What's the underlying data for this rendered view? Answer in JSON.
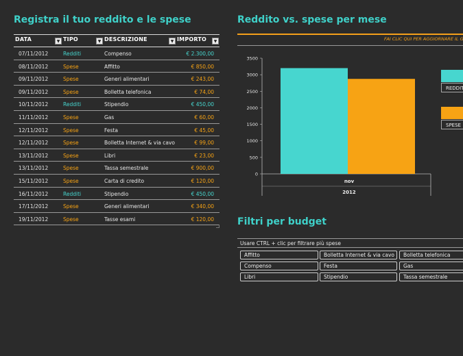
{
  "left_title": "Registra il tuo reddito e le spese",
  "right_title": "Reddito vs. spese per mese",
  "refresh_link": "FAI CLIC QUI PER AGGIORNARE IL GRAFICO",
  "filters_title": "Filtri per budget",
  "slicer_label": "Usare CTRL + clic per filtrare più spese",
  "colors": {
    "income": "#47d6cf",
    "expense": "#f7a314",
    "title": "#3fd1c9"
  },
  "table": {
    "headers": {
      "date": "DATA",
      "type": "TIPO",
      "desc": "DESCRIZIONE",
      "amount": "IMPORTO"
    },
    "rows": [
      {
        "date": "07/11/2012",
        "type": "Redditi",
        "kind": "income",
        "desc": "Compenso",
        "amount": "€ 2.300,00"
      },
      {
        "date": "08/11/2012",
        "type": "Spese",
        "kind": "expense",
        "desc": "Affitto",
        "amount": "€ 850,00"
      },
      {
        "date": "09/11/2012",
        "type": "Spese",
        "kind": "expense",
        "desc": "Generi alimentari",
        "amount": "€ 243,00"
      },
      {
        "date": "09/11/2012",
        "type": "Spese",
        "kind": "expense",
        "desc": "Bolletta telefonica",
        "amount": "€ 74,00"
      },
      {
        "date": "10/11/2012",
        "type": "Redditi",
        "kind": "income",
        "desc": "Stipendio",
        "amount": "€ 450,00"
      },
      {
        "date": "11/11/2012",
        "type": "Spese",
        "kind": "expense",
        "desc": "Gas",
        "amount": "€ 60,00"
      },
      {
        "date": "12/11/2012",
        "type": "Spese",
        "kind": "expense",
        "desc": "Festa",
        "amount": "€ 45,00"
      },
      {
        "date": "12/11/2012",
        "type": "Spese",
        "kind": "expense",
        "desc": "Bolletta Internet & via cavo",
        "amount": "€ 99,00"
      },
      {
        "date": "13/11/2012",
        "type": "Spese",
        "kind": "expense",
        "desc": "Libri",
        "amount": "€ 23,00"
      },
      {
        "date": "13/11/2012",
        "type": "Spese",
        "kind": "expense",
        "desc": "Tassa semestrale",
        "amount": "€ 900,00"
      },
      {
        "date": "15/11/2012",
        "type": "Spese",
        "kind": "expense",
        "desc": "Carta di credito",
        "amount": "€ 120,00"
      },
      {
        "date": "16/11/2012",
        "type": "Redditi",
        "kind": "income",
        "desc": "Stipendio",
        "amount": "€ 450,00"
      },
      {
        "date": "17/11/2012",
        "type": "Spese",
        "kind": "expense",
        "desc": "Generi alimentari",
        "amount": "€ 340,00"
      },
      {
        "date": "19/11/2012",
        "type": "Spese",
        "kind": "expense",
        "desc": "Tasse esami",
        "amount": "€ 120,00"
      }
    ]
  },
  "chart_data": {
    "type": "bar",
    "categories": [
      "nov"
    ],
    "group_label": "2012",
    "series": [
      {
        "name": "REDDITI",
        "values": [
          3200
        ],
        "color": "#47d6cf"
      },
      {
        "name": "SPESE",
        "values": [
          2874
        ],
        "color": "#f7a314"
      }
    ],
    "yticks": [
      "3500",
      "3000",
      "2500",
      "2000",
      "1500",
      "1000",
      "500",
      "0"
    ],
    "ylim": [
      0,
      3500
    ],
    "legend_position": "right"
  },
  "slicer": {
    "items": [
      "Affitto",
      "Bolletta Internet & via cavo",
      "Bolletta telefonica",
      "Compenso",
      "Festa",
      "Gas",
      "Libri",
      "Stipendio",
      "Tassa semestrale"
    ]
  }
}
